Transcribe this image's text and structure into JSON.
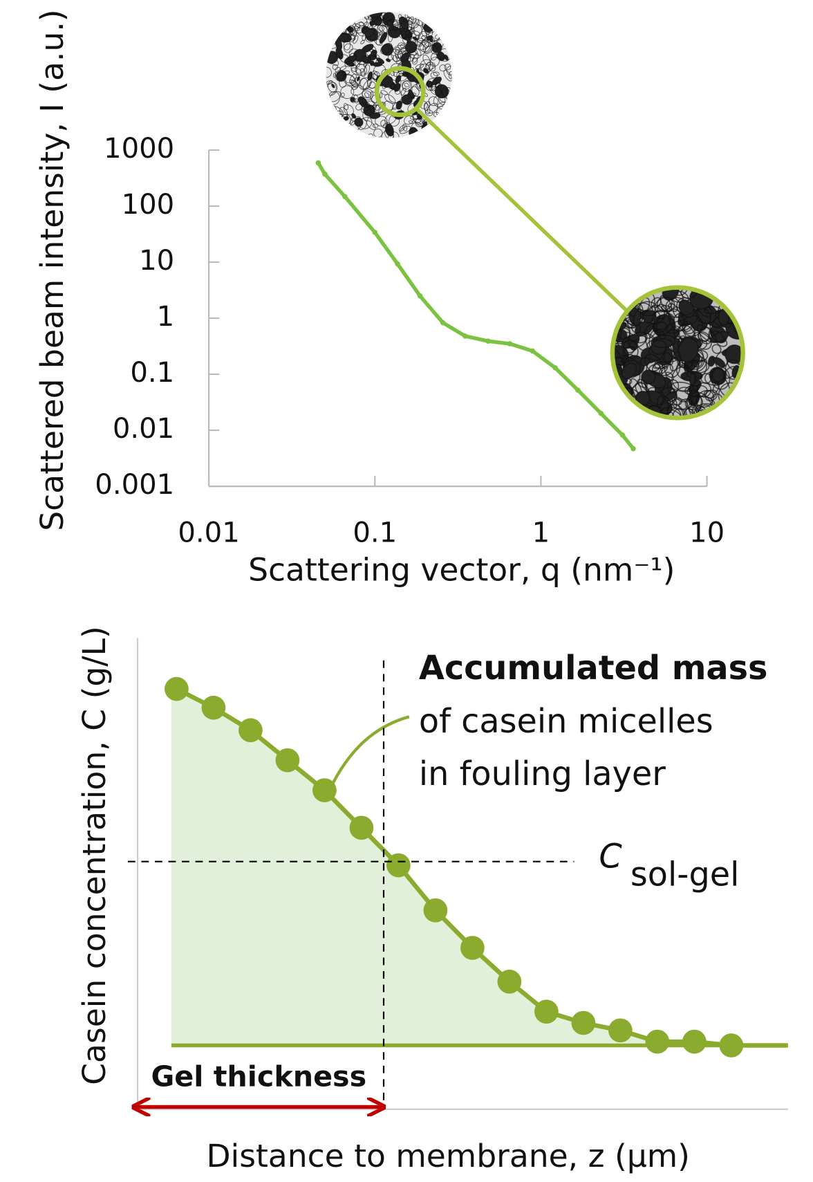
{
  "chart_data": [
    {
      "type": "scatter",
      "xlabel": "Scattering vector, q (nm⁻¹)",
      "ylabel": "Scattered  beam intensity, I (a.u.)",
      "log_x": true,
      "log_y": true,
      "xlim": [
        0.01,
        10
      ],
      "xticks": [
        0.01,
        0.1,
        1,
        10
      ],
      "ylim": [
        0.001,
        1000
      ],
      "yticks": [
        0.001,
        0.01,
        0.1,
        1,
        10,
        100,
        1000
      ],
      "color": "#7cc242",
      "x": [
        0.0456,
        0.05,
        0.066,
        0.1,
        0.137,
        0.187,
        0.257,
        0.35,
        0.48,
        0.65,
        0.89,
        1.22,
        1.67,
        2.3,
        3.1,
        3.6
      ],
      "values": [
        592,
        372,
        148,
        34,
        9.3,
        2.5,
        0.83,
        0.48,
        0.39,
        0.35,
        0.26,
        0.13,
        0.052,
        0.02,
        0.0082,
        0.0047
      ]
    },
    {
      "type": "line",
      "xlabel": "Distance to membrane, z (μm)",
      "ylabel": "Casein concentration, C (g/L)",
      "ylim": [
        0,
        100
      ],
      "color": "#8aab2e",
      "fill": "#e2efd9",
      "categories": [
        null,
        null,
        null,
        null,
        null,
        null,
        null,
        null,
        null,
        null,
        null,
        null,
        null,
        null,
        null,
        null
      ],
      "values": [
        95,
        90,
        84,
        76,
        68,
        58,
        48,
        36,
        26,
        17,
        9,
        6,
        4,
        1,
        1,
        0
      ],
      "threshold": {
        "symbol": "C",
        "subscript": "sol-gel",
        "value": 49
      },
      "gel_thickness": {
        "label": "Gel thickness",
        "x": 5.6
      },
      "annotation": {
        "title": "Accumulated mass",
        "lines": [
          "of casein micelles",
          "in fouling layer"
        ]
      }
    }
  ]
}
